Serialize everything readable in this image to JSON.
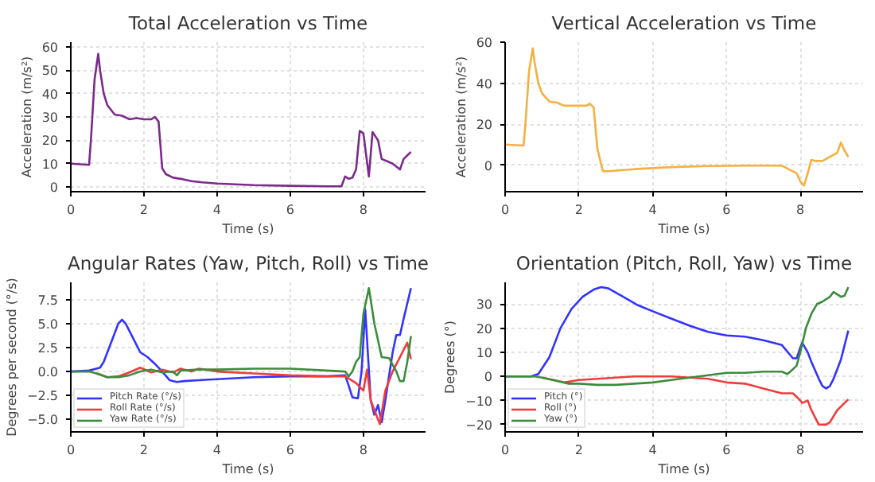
{
  "chart_data": [
    {
      "type": "line",
      "title": "Total Acceleration vs Time",
      "xlabel": "Time (s)",
      "ylabel": "Acceleration (m/s²)",
      "xlim": [
        0,
        9.7
      ],
      "ylim": [
        -2,
        62
      ],
      "xticks": [
        0,
        2,
        4,
        6,
        8
      ],
      "yticks": [
        0,
        10,
        20,
        30,
        40,
        50,
        60
      ],
      "grid": true,
      "legend": false,
      "series": [
        {
          "color": "#7b2a8a",
          "x": [
            0,
            0.5,
            0.55,
            0.65,
            0.75,
            0.8,
            0.9,
            1.0,
            1.2,
            1.4,
            1.6,
            1.8,
            2.0,
            2.2,
            2.3,
            2.4,
            2.5,
            2.6,
            2.8,
            3.0,
            3.3,
            3.6,
            4,
            5,
            6,
            7,
            7.4,
            7.5,
            7.6,
            7.7,
            7.8,
            7.9,
            8.0,
            8.15,
            8.25,
            8.4,
            8.5,
            8.65,
            8.8,
            9.0,
            9.1,
            9.3
          ],
          "values": [
            10,
            9.5,
            20,
            46,
            57,
            50,
            40,
            35,
            31,
            30.5,
            29,
            29.5,
            29,
            29,
            30,
            28,
            8,
            5.5,
            4,
            3.5,
            2.5,
            2,
            1.5,
            0.8,
            0.5,
            0.3,
            0.3,
            4.5,
            3.5,
            4,
            7.5,
            24,
            23,
            4.5,
            23.5,
            20,
            12,
            11,
            10,
            7.5,
            12,
            15
          ]
        }
      ]
    },
    {
      "type": "line",
      "title": "Vertical Acceleration vs Time",
      "xlabel": "Time (s)",
      "ylabel": "Acceleration (m/s²)",
      "xlim": [
        0,
        9.7
      ],
      "ylim": [
        -13,
        60
      ],
      "xticks": [
        0,
        2,
        4,
        6,
        8
      ],
      "yticks": [
        0,
        20,
        40,
        60
      ],
      "grid": true,
      "legend": false,
      "series": [
        {
          "color": "#f5b041",
          "x": [
            0,
            0.5,
            0.55,
            0.65,
            0.75,
            0.8,
            0.9,
            1.0,
            1.2,
            1.4,
            1.6,
            1.8,
            2.0,
            2.2,
            2.3,
            2.4,
            2.5,
            2.65,
            2.8,
            3.5,
            4.5,
            5.5,
            6.5,
            7.5,
            7.9,
            8.0,
            8.1,
            8.2,
            8.3,
            8.4,
            8.6,
            8.8,
            9.0,
            9.1,
            9.2,
            9.3
          ],
          "values": [
            10,
            9.5,
            20,
            46,
            57,
            50,
            40,
            35,
            31,
            30.5,
            29,
            29,
            29,
            29,
            30,
            28,
            8,
            -3,
            -3,
            -2,
            -1,
            -0.5,
            -0.3,
            -0.3,
            -4,
            -8,
            -10,
            -4,
            2.5,
            2,
            2,
            4,
            6,
            11,
            7,
            4
          ]
        }
      ]
    },
    {
      "type": "line",
      "title": "Angular Rates (Yaw, Pitch, Roll) vs Time",
      "xlabel": "Time (s)",
      "ylabel": "Degrees per second (°/s)",
      "xlim": [
        0,
        9.7
      ],
      "ylim": [
        -6.3,
        9.3
      ],
      "xticks": [
        0,
        2,
        4,
        6,
        8
      ],
      "yticks": [
        {
          "value": -5,
          "label": "−5.0"
        },
        {
          "value": -2.5,
          "label": "−2.5"
        },
        {
          "value": 0,
          "label": "0.0"
        },
        {
          "value": 2.5,
          "label": "2.5"
        },
        {
          "value": 5,
          "label": "5.0"
        },
        {
          "value": 7.5,
          "label": "7.5"
        }
      ],
      "grid": true,
      "legend": "bottom left",
      "series": [
        {
          "name": "Pitch Rate (°/s)",
          "color": "#3333ff",
          "x": [
            0,
            0.5,
            0.7,
            0.8,
            0.9,
            1.1,
            1.3,
            1.4,
            1.5,
            1.7,
            1.9,
            2.1,
            2.3,
            2.5,
            2.7,
            2.9,
            3.1,
            3.5,
            4,
            5,
            6,
            7,
            7.5,
            7.6,
            7.7,
            7.85,
            7.95,
            8.05,
            8.2,
            8.3,
            8.4,
            8.5,
            8.6,
            8.8,
            8.9,
            9.0,
            9.1,
            9.3
          ],
          "values": [
            0,
            0.1,
            0.3,
            0.4,
            1,
            3,
            5,
            5.4,
            5,
            3.5,
            2,
            1.5,
            0.8,
            0,
            -0.9,
            -1.1,
            -1,
            -0.9,
            -0.8,
            -0.6,
            -0.5,
            -0.5,
            -0.4,
            -1.5,
            -2.7,
            -2.8,
            0,
            6.5,
            -3,
            -4.5,
            -3.5,
            -5.3,
            -3,
            2,
            3.8,
            3.8,
            5.5,
            8.7
          ]
        },
        {
          "name": "Roll Rate (°/s)",
          "color": "#f03c3c",
          "x": [
            0.7,
            1,
            1.3,
            1.6,
            1.9,
            2.2,
            2.5,
            2.8,
            3.0,
            3.3,
            3.5,
            4,
            5,
            6,
            7,
            7.5,
            7.8,
            8.0,
            8.1,
            8.2,
            8.3,
            8.45,
            8.6,
            8.8,
            9.0,
            9.2,
            9.3
          ],
          "values": [
            -0.2,
            -0.6,
            -0.5,
            -0.1,
            0.4,
            -0.1,
            0.2,
            -0.1,
            0.3,
            0,
            0.3,
            0,
            -0.2,
            -0.4,
            -0.5,
            -0.5,
            -1.2,
            -2,
            0.2,
            -3,
            -4,
            -5.5,
            -2,
            0,
            1.5,
            3,
            1.3
          ]
        },
        {
          "name": "Yaw Rate (°/s)",
          "color": "#3c8c3c",
          "x": [
            0,
            0.5,
            0.8,
            1.0,
            1.3,
            1.6,
            1.9,
            2.2,
            2.5,
            2.8,
            2.9,
            3.0,
            3.5,
            4,
            5,
            6,
            7,
            7.5,
            7.6,
            7.7,
            7.8,
            7.9,
            8.0,
            8.15,
            8.3,
            8.5,
            8.7,
            8.9,
            9.0,
            9.1,
            9.2,
            9.3
          ],
          "values": [
            0,
            0,
            -0.3,
            -0.6,
            -0.6,
            -0.4,
            0,
            0.2,
            -0.1,
            0,
            -0.4,
            0.1,
            0.2,
            0.2,
            0.3,
            0.3,
            0.1,
            0,
            -0.5,
            0,
            1,
            1.5,
            6,
            8.7,
            5,
            1.5,
            1.4,
            0,
            -1,
            -1,
            1,
            3.7
          ]
        }
      ]
    },
    {
      "type": "line",
      "title": "Orientation (Pitch, Roll, Yaw) vs Time",
      "xlabel": "Time (s)",
      "ylabel": "Degrees (°)",
      "xlim": [
        0,
        9.7
      ],
      "ylim": [
        -23,
        39
      ],
      "xticks": [
        0,
        2,
        4,
        6,
        8
      ],
      "yticks": [
        {
          "value": -20,
          "label": "−20"
        },
        {
          "value": -10,
          "label": "−10"
        },
        0,
        10,
        20,
        30
      ],
      "grid": true,
      "legend": "bottom left",
      "series": [
        {
          "name": "Pitch (°)",
          "color": "#3333ff",
          "x": [
            0,
            0.7,
            0.9,
            1.2,
            1.5,
            1.8,
            2.1,
            2.4,
            2.6,
            2.8,
            3.2,
            3.6,
            4,
            4.5,
            5,
            5.5,
            6,
            6.5,
            7,
            7.5,
            7.8,
            7.9,
            8.0,
            8.05,
            8.2,
            8.3,
            8.5,
            8.6,
            8.7,
            8.8,
            8.9,
            9.0,
            9.1,
            9.3
          ],
          "values": [
            0,
            0,
            1,
            8,
            20,
            28,
            33,
            36,
            37,
            36.5,
            33,
            29.5,
            27,
            24,
            21,
            18.5,
            17,
            16.5,
            15,
            13,
            7.5,
            7.5,
            12,
            14,
            10,
            6,
            -1,
            -4,
            -5,
            -4,
            -1,
            3,
            7,
            19
          ]
        },
        {
          "name": "Roll (°)",
          "color": "#f03c3c",
          "x": [
            1.0,
            1.3,
            1.6,
            2,
            2.5,
            3,
            3.5,
            4,
            4.5,
            5,
            5.5,
            6,
            6.5,
            7,
            7.5,
            7.8,
            8.0,
            8.05,
            8.2,
            8.3,
            8.5,
            8.7,
            8.8,
            9.0,
            9.3
          ],
          "values": [
            -0.5,
            -1.5,
            -2.5,
            -1.5,
            -1,
            -0.5,
            0,
            0,
            0,
            -0.5,
            -1,
            -2.5,
            -3,
            -5,
            -7,
            -7,
            -10,
            -11,
            -10,
            -14,
            -20,
            -20,
            -19,
            -14,
            -9.5
          ]
        },
        {
          "name": "Yaw (°)",
          "color": "#3c8c3c",
          "x": [
            0,
            0.8,
            1.0,
            1.3,
            1.7,
            2,
            2.5,
            3,
            3.5,
            4,
            4.5,
            5,
            5.5,
            6,
            6.5,
            7,
            7.5,
            7.65,
            7.8,
            7.9,
            8.0,
            8.15,
            8.3,
            8.45,
            8.6,
            8.8,
            8.9,
            9.0,
            9.1,
            9.2,
            9.3
          ],
          "values": [
            0,
            0,
            -0.5,
            -1.5,
            -3,
            -3,
            -3.5,
            -3.5,
            -3,
            -2.5,
            -1.5,
            -0.5,
            0.5,
            1.5,
            1.5,
            2,
            2,
            1,
            3,
            4.5,
            10,
            20,
            26,
            30,
            31,
            33,
            35,
            34,
            33,
            33.5,
            37
          ]
        }
      ]
    }
  ]
}
